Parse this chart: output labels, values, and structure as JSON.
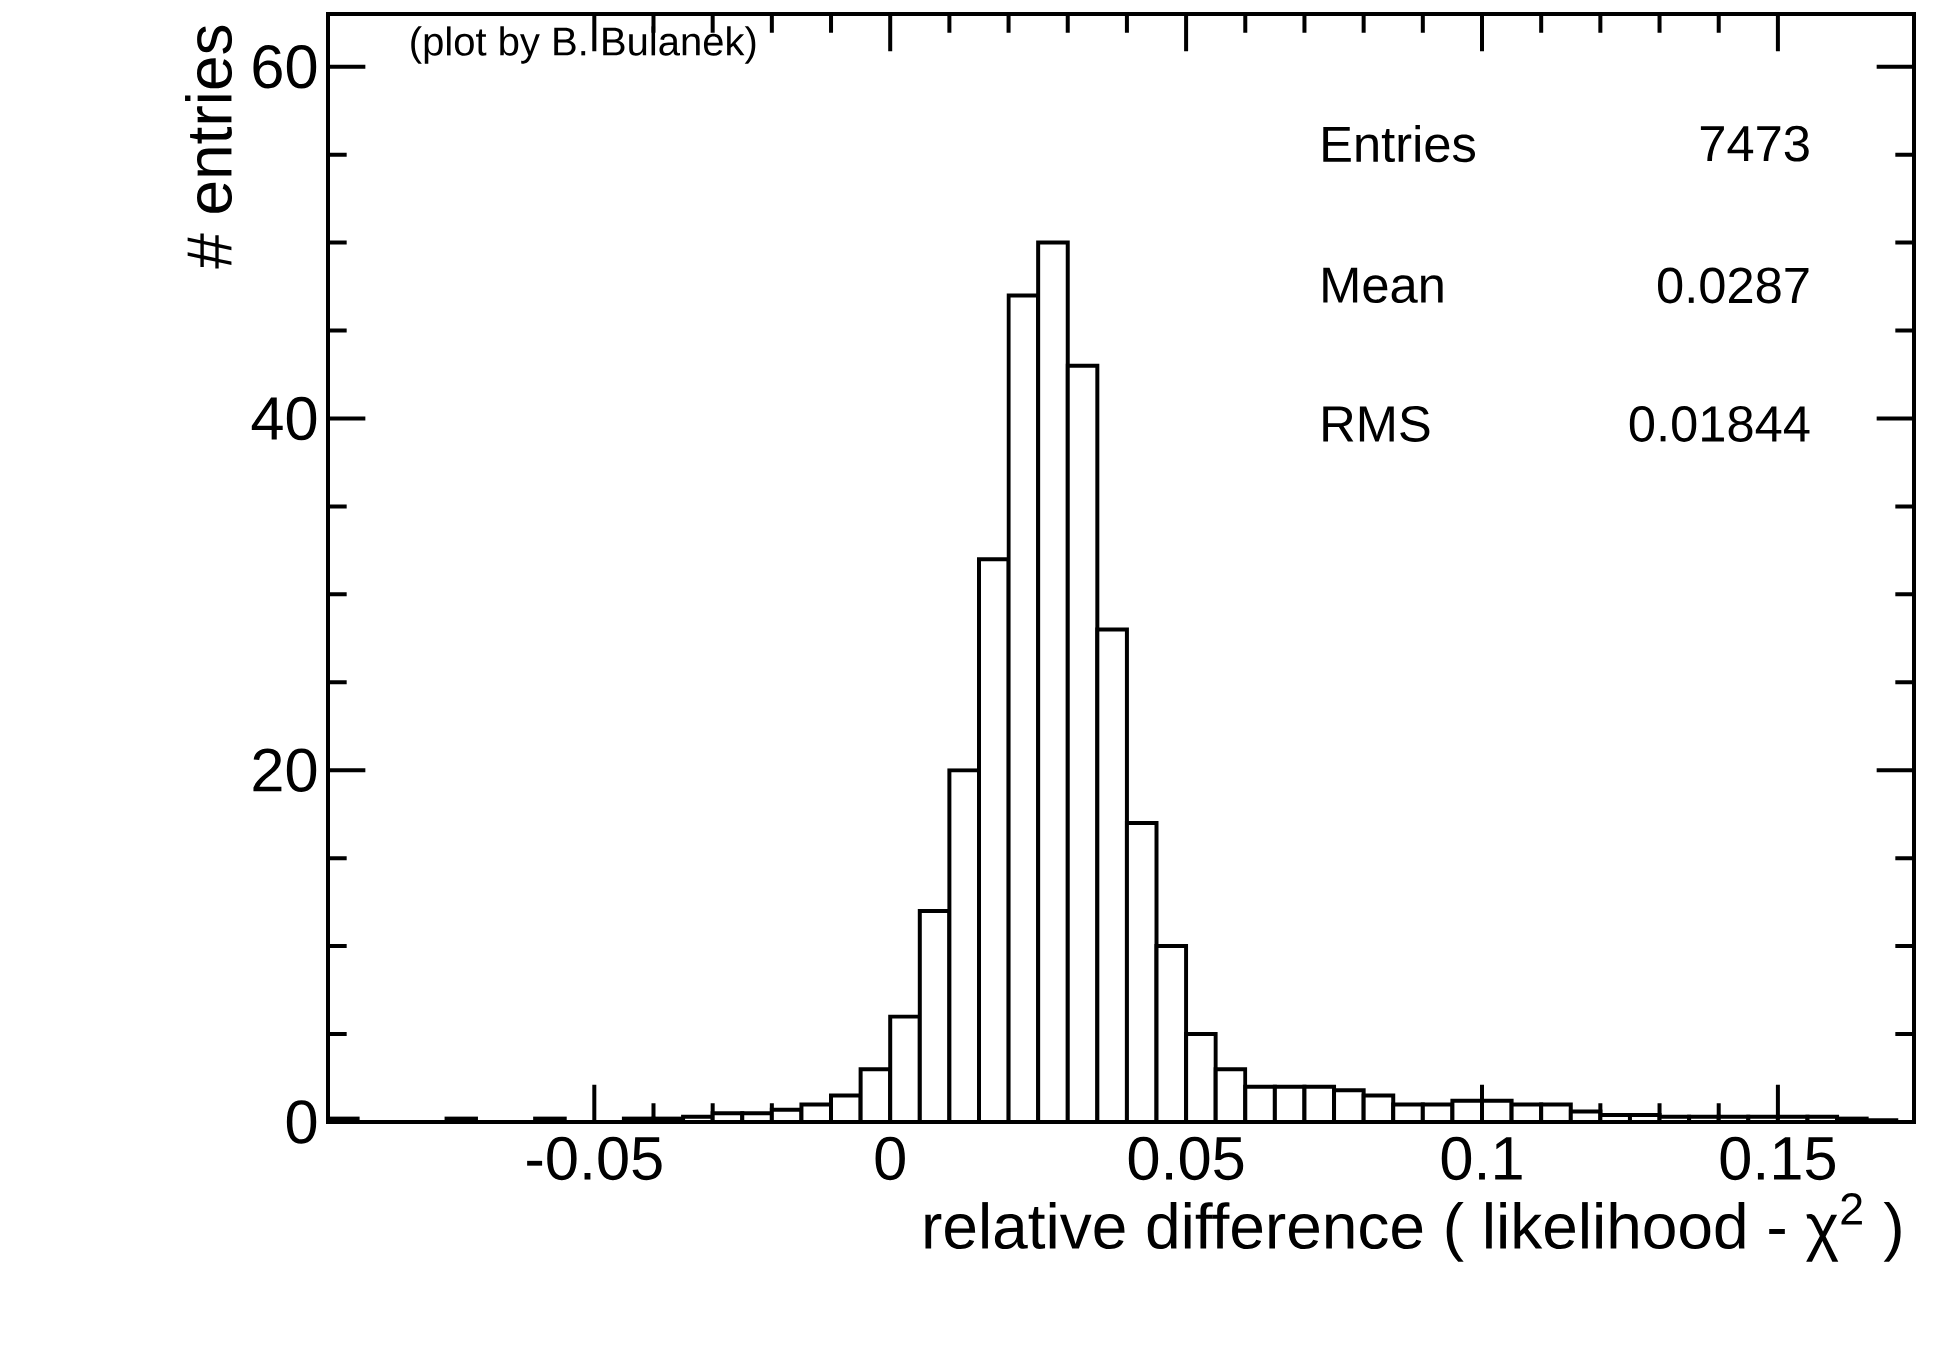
{
  "chart_data": {
    "type": "histogram",
    "xlabel": "relative difference ( likelihood - χ$^{2}$ )",
    "ylabel": "# entries",
    "bins": [
      -0.095,
      -0.09,
      -0.085,
      -0.08,
      -0.075,
      -0.07,
      -0.065,
      -0.06,
      -0.055,
      -0.05,
      -0.045,
      -0.04,
      -0.035,
      -0.03,
      -0.025,
      -0.02,
      -0.015,
      -0.01,
      -0.005,
      0,
      0.005,
      0.01,
      0.015,
      0.02,
      0.025,
      0.03,
      0.035,
      0.04,
      0.045,
      0.05,
      0.055,
      0.06,
      0.065,
      0.07,
      0.075,
      0.08,
      0.085,
      0.09,
      0.095,
      0.1,
      0.105,
      0.11,
      0.115,
      0.12,
      0.125,
      0.13,
      0.135,
      0.14,
      0.145,
      0.15,
      0.155,
      0.16,
      0.165,
      0.17
    ],
    "values": [
      0.2,
      0,
      0,
      0,
      0.2,
      0,
      0,
      0.2,
      0,
      0,
      0.2,
      0.2,
      0.3,
      0.5,
      0.5,
      0.7,
      1,
      1.5,
      3,
      6,
      12,
      20,
      32,
      47,
      50,
      43,
      28,
      17,
      10,
      5,
      3,
      2,
      2,
      2,
      1.8,
      1.5,
      1,
      1,
      1.2,
      1.2,
      1,
      1,
      0.6,
      0.4,
      0.4,
      0.3,
      0.3,
      0.3,
      0.3,
      0.3,
      0.3,
      0.2,
      0.1
    ],
    "color": "#000000",
    "xlim": [
      -0.095,
      0.173
    ],
    "ylim": [
      0,
      63
    ],
    "xticks": [
      -0.05,
      0,
      0.05,
      0.1,
      0.15
    ],
    "yticks": [
      0,
      20,
      40,
      60
    ],
    "annotations": [
      "(plot by B. Bulanek)",
      "Entries",
      "7473",
      "Mean",
      "0.0287",
      "RMS",
      "0.01844"
    ]
  }
}
